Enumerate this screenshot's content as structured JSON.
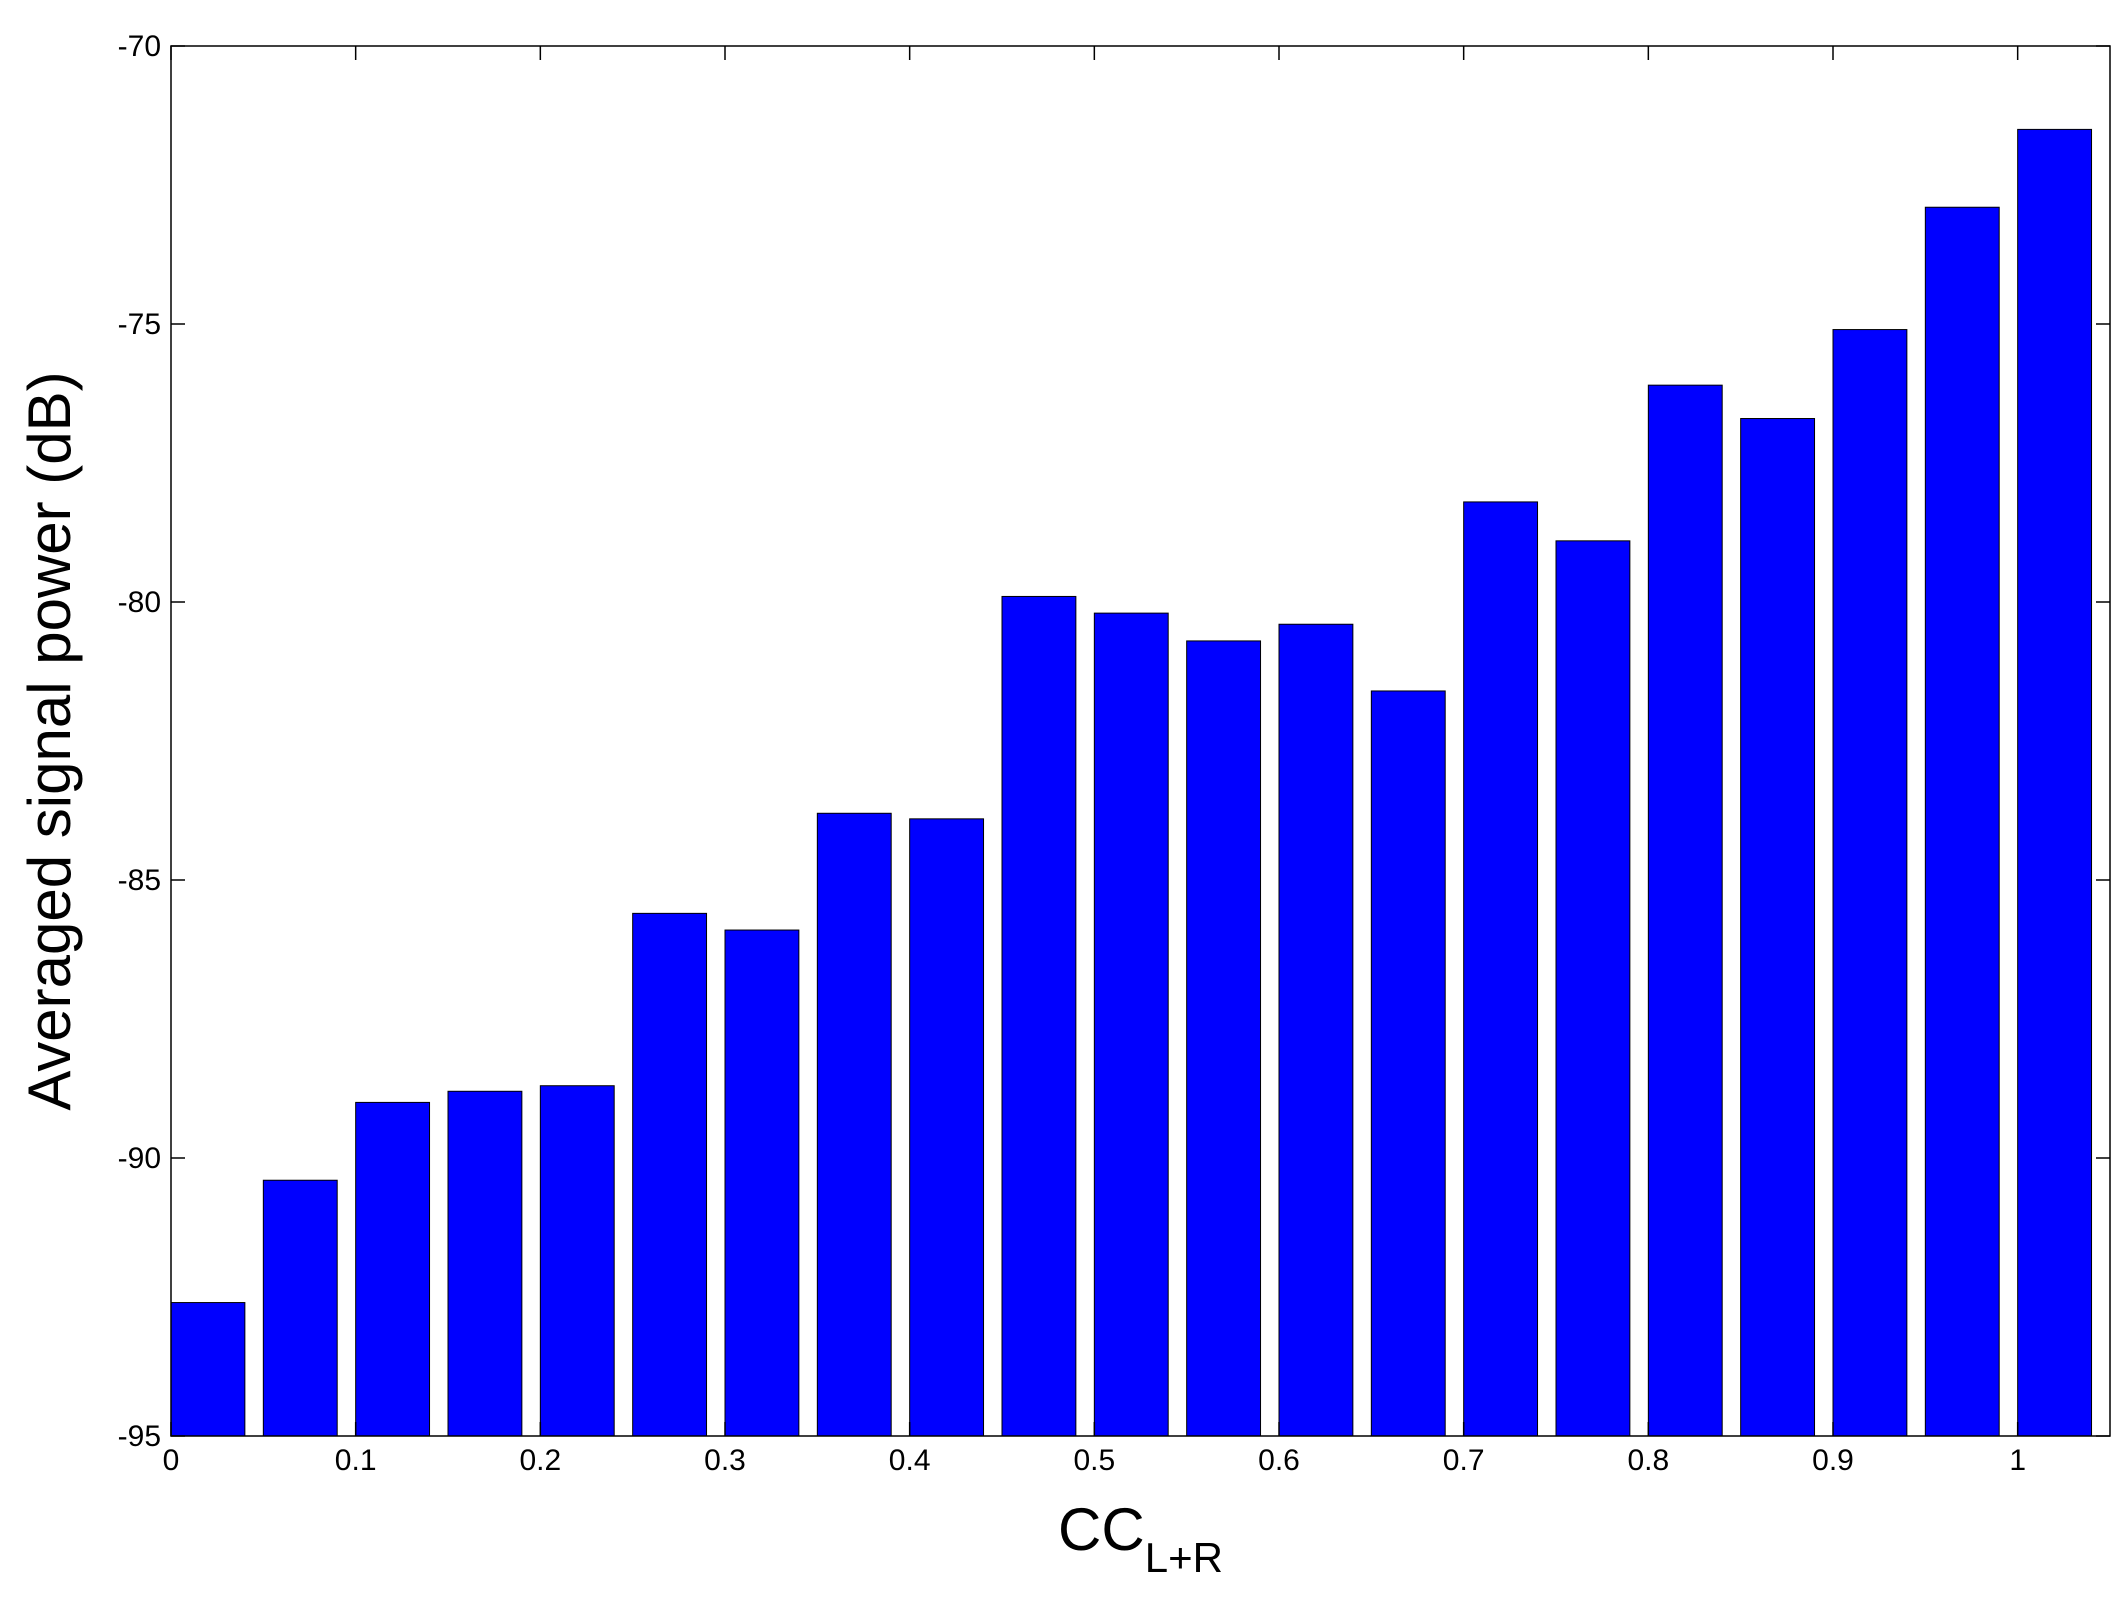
{
  "chart_data": {
    "type": "bar",
    "title": "",
    "xlabel": {
      "main": "CC",
      "subscript": "L+R"
    },
    "ylabel": "Averaged signal power (dB)",
    "x": [
      0.02,
      0.07,
      0.12,
      0.17,
      0.22,
      0.27,
      0.32,
      0.37,
      0.42,
      0.47,
      0.52,
      0.57,
      0.62,
      0.67,
      0.72,
      0.77,
      0.82,
      0.87,
      0.92,
      0.97,
      1.02
    ],
    "values": [
      -92.6,
      -90.4,
      -89.0,
      -88.8,
      -88.7,
      -85.6,
      -85.9,
      -83.8,
      -83.9,
      -79.9,
      -80.2,
      -80.7,
      -80.4,
      -81.6,
      -78.2,
      -78.9,
      -76.1,
      -76.7,
      -75.1,
      -72.9,
      -71.5
    ],
    "xlim": [
      0,
      1.05
    ],
    "ylim": [
      -95,
      -70
    ],
    "xticks": [
      0,
      0.1,
      0.2,
      0.3,
      0.4,
      0.5,
      0.6,
      0.7,
      0.8,
      0.9,
      1
    ],
    "xtick_labels": [
      "0",
      "0.1",
      "0.2",
      "0.3",
      "0.4",
      "0.5",
      "0.6",
      "0.7",
      "0.8",
      "0.9",
      "1"
    ],
    "yticks": [
      -95,
      -90,
      -85,
      -80,
      -75,
      -70
    ],
    "ytick_labels": [
      "-95",
      "-90",
      "-85",
      "-80",
      "-75",
      "-70"
    ],
    "bar_color": "#0000ff",
    "grid": false,
    "legend": "none"
  }
}
